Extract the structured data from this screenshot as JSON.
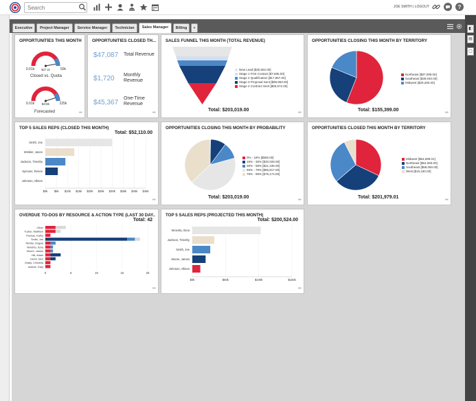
{
  "topbar": {
    "search_placeholder": "Search",
    "user_link": "JOE SMITH | LOGOUT"
  },
  "tabs": [
    {
      "label": "Executive"
    },
    {
      "label": "Project Manager"
    },
    {
      "label": "Service Manager"
    },
    {
      "label": "Technician"
    },
    {
      "label": "Sales Manager"
    },
    {
      "label": "Billing"
    },
    {
      "label": "+"
    }
  ],
  "colors": {
    "red": "#e0243b",
    "navy": "#15407a",
    "blue": "#4a88c8",
    "beige": "#e9dfcb",
    "gray": "#e6e6e6",
    "light": "#d3dff0"
  },
  "p1": {
    "title": "OPPORTUNITIES THIS MONTH",
    "g1": {
      "left": "0.01k",
      "value": "$47.1k",
      "right": "50k",
      "label": "Closed vs. Quota",
      "fraction": 0.94
    },
    "g2": {
      "left": "0.01k",
      "value": "$203k",
      "right": "225k",
      "label": "Forecasted",
      "fraction": 0.9
    }
  },
  "p2": {
    "title": "OPPORTUNITIES CLOSED TH...",
    "rows": [
      {
        "value": "$47,087",
        "label": "Total Revenue"
      },
      {
        "value": "$1,720",
        "label": "Monthly Revenue"
      },
      {
        "value": "$45,367",
        "label": "One-Time Revenue"
      }
    ]
  },
  "p3": {
    "title": "SALES FUNNEL THIS MONTH (TOTAL REVENUE)",
    "total": "Total:  $203,019.00",
    "legend": [
      "New Lead [$30,652.00]",
      "Stage 1 First Contact [$7,685.00]",
      "Stage 2 Qualification [$17,867.00]",
      "Stage 3 Proposal Sent [$89,963.00]",
      "Stage 4 Contract Sent [$55,572.00]"
    ]
  },
  "p4": {
    "title": "OPPORTUNITIES CLOSING THIS MONTH BY TERRITORY",
    "total": "Total:  $155,399.00",
    "legend": [
      "Northeast [$87,099.00]",
      "Southeast [$39,040.00]",
      "Midwest [$29,260.00]"
    ]
  },
  "p5": {
    "title": "TOP 5 SALES REPS (CLOSED THIS MONTH)",
    "total": "Total:  $52,110.00",
    "names": [
      "Smith, Joe",
      "Winkler, Jason",
      "Jackson, Timothy",
      "Symons, Renee",
      "Johnson, Allison"
    ],
    "ticks": [
      "$0k",
      "$5k",
      "$10k",
      "$15k",
      "$20k",
      "$25k",
      "$30k",
      "$35k",
      "$40k",
      "$45k"
    ]
  },
  "p6": {
    "title": "OPPORTUNITIES CLOSING THIS MONTH BY PROBABILITY",
    "total": "Total:  $203,019.00",
    "legend": [
      "0% - 18% [$565.00]",
      "19% - 35% [$20,028.00]",
      "35% - 58% [$21,435.00]",
      "59% - 79% [$85,817.00]",
      "79% - 99% [$75,174.00]"
    ]
  },
  "p7": {
    "title": "OPPORTUNITIES CLOSED THIS MONTH BY TERRITORY",
    "total": "Total:  $201,979.01",
    "legend": [
      "Midwest [$64,699.01]",
      "Northeast [$64,050.00]",
      "Southeast [$58,050.00]",
      "West [$15,180.00]"
    ]
  },
  "p8": {
    "title": "OVERDUE TO-DOS BY RESOURCE & ACTION TYPE (LAST 30 DAY...",
    "total": "Total:  42",
    "names": [
      "Other",
      "Tucker, Matthew",
      "Thomas, Kathy",
      "Smith, Joe",
      "Richter, Angela",
      "Ninivirta, Ilona",
      "Moore, James",
      "Hill, Adam",
      "Henni, Ben",
      "Grady, Christina",
      "Adams, Gary"
    ],
    "ticks": [
      "0",
      "5",
      "10",
      "15",
      "20"
    ]
  },
  "p9": {
    "title": "TOP 5 SALES REPS (PROJECTED THIS MONTH)",
    "total": "Total:  $200,524.00",
    "names": [
      "Ninivirta, Ilona",
      "Jackson, Timothy",
      "Smith, Joe",
      "Moore, James",
      "Johnson, Allison"
    ],
    "ticks": [
      "$0k",
      "$50k",
      "$100k",
      "$150k"
    ]
  },
  "chart_data": [
    {
      "type": "gauge",
      "title": "OPPORTUNITIES THIS MONTH",
      "gauges": [
        {
          "label": "Closed vs. Quota",
          "value": 47.1,
          "min": 0.01,
          "max": 50
        },
        {
          "label": "Forecasted",
          "value": 203,
          "min": 0.01,
          "max": 225
        }
      ]
    },
    {
      "type": "funnel",
      "title": "SALES FUNNEL THIS MONTH (TOTAL REVENUE)",
      "categories": [
        "New Lead",
        "Stage 1 First Contact",
        "Stage 2 Qualification",
        "Stage 3 Proposal Sent",
        "Stage 4 Contract Sent"
      ],
      "values": [
        30652,
        7685,
        17867,
        89963,
        55572
      ],
      "colors": [
        "#e6e6e6",
        "#d3dff0",
        "#4a88c8",
        "#15407a",
        "#e0243b"
      ]
    },
    {
      "type": "pie",
      "title": "OPPORTUNITIES CLOSING THIS MONTH BY TERRITORY",
      "categories": [
        "Northeast",
        "Southeast",
        "Midwest"
      ],
      "values": [
        87099,
        39040,
        29260
      ],
      "colors": [
        "#e0243b",
        "#15407a",
        "#4a88c8"
      ]
    },
    {
      "type": "bar",
      "title": "TOP 5 SALES REPS (CLOSED THIS MONTH)",
      "categories": [
        "Smith, Joe",
        "Winkler, Jason",
        "Jackson, Timothy",
        "Symons, Renee",
        "Johnson, Allison"
      ],
      "values": [
        30000,
        13000,
        9000,
        5600,
        0
      ],
      "colors": [
        "#e6e6e6",
        "#e9dfcb",
        "#4a88c8",
        "#15407a",
        "#15407a"
      ],
      "xlim": [
        0,
        45000
      ]
    },
    {
      "type": "pie",
      "title": "OPPORTUNITIES CLOSING THIS MONTH BY PROBABILITY",
      "categories": [
        "0% - 18%",
        "19% - 35%",
        "35% - 58%",
        "59% - 79%",
        "79% - 99%"
      ],
      "values": [
        565,
        20028,
        21435,
        85817,
        75174
      ],
      "colors": [
        "#e0243b",
        "#15407a",
        "#4a88c8",
        "#e6e6e6",
        "#e9dfcb"
      ]
    },
    {
      "type": "pie",
      "title": "OPPORTUNITIES CLOSED THIS MONTH BY TERRITORY",
      "categories": [
        "Midwest",
        "Northeast",
        "Southeast",
        "West"
      ],
      "values": [
        64699.01,
        64050,
        58050,
        15180
      ],
      "colors": [
        "#e0243b",
        "#15407a",
        "#4a88c8",
        "#e9dfcb"
      ]
    },
    {
      "type": "bar",
      "title": "OVERDUE TO-DOS BY RESOURCE & ACTION TYPE (LAST 30 DAY...",
      "categories": [
        "Other",
        "Tucker, Matthew",
        "Thomas, Kathy",
        "Smith, Joe",
        "Richter, Angela",
        "Ninivirta, Ilona",
        "Moore, James",
        "Hill, Adam",
        "Henni, Ben",
        "Grady, Christina",
        "Adams, Gary"
      ],
      "series": [
        {
          "values": [
            2,
            2,
            1,
            0,
            1,
            1,
            1,
            1,
            1,
            1,
            1
          ],
          "color": "#e0243b"
        },
        {
          "values": [
            0,
            0,
            0,
            16,
            0,
            0,
            0,
            2,
            1,
            0,
            0
          ],
          "color": "#15407a"
        },
        {
          "values": [
            0,
            0,
            0,
            1.5,
            1,
            0.5,
            0.5,
            0,
            0,
            0,
            0
          ],
          "color": "#4a88c8"
        },
        {
          "values": [
            2,
            1,
            0,
            1,
            0,
            0,
            0,
            0,
            0,
            0,
            0
          ],
          "color": "#d9d9d9"
        }
      ],
      "xlim": [
        0,
        20
      ]
    },
    {
      "type": "bar",
      "title": "TOP 5 SALES REPS (PROJECTED THIS MONTH)",
      "categories": [
        "Ninivirta, Ilona",
        "Jackson, Timothy",
        "Smith, Joe",
        "Moore, James",
        "Johnson, Allison"
      ],
      "values": [
        103000,
        33000,
        27000,
        20000,
        12000
      ],
      "colors": [
        "#e6e6e6",
        "#e9dfcb",
        "#4a88c8",
        "#15407a",
        "#e0243b"
      ],
      "xlim": [
        0,
        150000
      ]
    }
  ]
}
